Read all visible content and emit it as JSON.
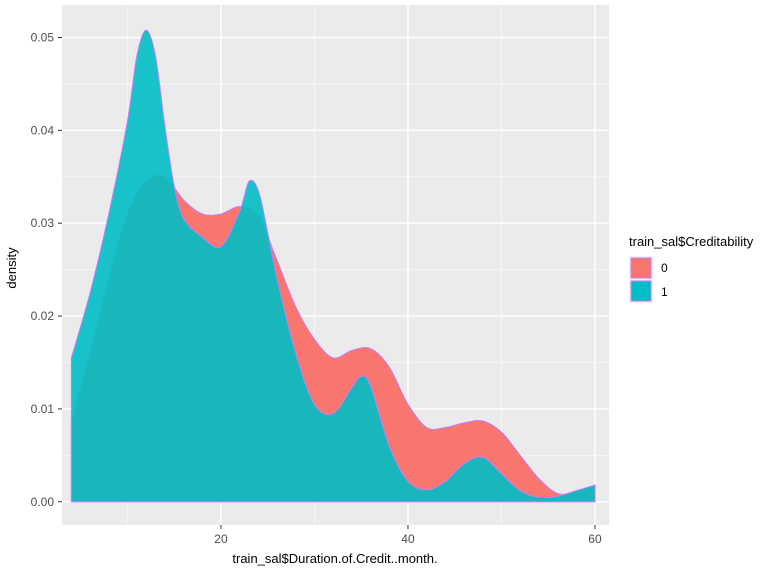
{
  "chart_data": {
    "type": "area",
    "subtype": "density",
    "title": "",
    "xlabel": "train_sal$Duration.of.Credit..month.",
    "ylabel": "density",
    "xlim": [
      3,
      61.5
    ],
    "ylim": [
      -0.0025,
      0.0535
    ],
    "x_ticks": [
      20,
      40,
      60
    ],
    "x_tick_labels": [
      "20",
      "40",
      "60"
    ],
    "y_ticks": [
      0.0,
      0.01,
      0.02,
      0.03,
      0.04,
      0.05
    ],
    "y_tick_labels": [
      "0.00",
      "0.01",
      "0.02",
      "0.03",
      "0.04",
      "0.05"
    ],
    "grid": true,
    "legend": {
      "title": "train_sal$Creditability",
      "position": "right"
    },
    "series": [
      {
        "name": "0",
        "color": "#F8766D",
        "outline": "#C77CFF",
        "x": [
          4,
          6,
          8,
          10,
          12,
          14,
          16,
          18,
          20,
          22,
          24,
          26,
          28,
          30,
          32,
          34,
          36,
          38,
          40,
          42,
          44,
          46,
          48,
          50,
          52,
          54,
          56,
          58,
          60
        ],
        "y": [
          0.0085,
          0.016,
          0.024,
          0.031,
          0.0345,
          0.035,
          0.0325,
          0.031,
          0.031,
          0.0318,
          0.0308,
          0.026,
          0.021,
          0.0175,
          0.0155,
          0.0163,
          0.0165,
          0.0145,
          0.0105,
          0.008,
          0.008,
          0.0085,
          0.0087,
          0.0075,
          0.005,
          0.0025,
          0.0009,
          0.0011,
          0.0018
        ]
      },
      {
        "name": "1",
        "color": "#00BFC4",
        "outline": "#C77CFF",
        "x": [
          4,
          6,
          8,
          10,
          11,
          12,
          13,
          14,
          15,
          16,
          18,
          20,
          22,
          23,
          24,
          25,
          26,
          28,
          30,
          32,
          34,
          35,
          36,
          38,
          40,
          42,
          44,
          46,
          48,
          50,
          52,
          54,
          56,
          58,
          60
        ],
        "y": [
          0.0155,
          0.0225,
          0.031,
          0.041,
          0.048,
          0.0508,
          0.048,
          0.0405,
          0.034,
          0.0305,
          0.0285,
          0.0275,
          0.0313,
          0.0345,
          0.0335,
          0.029,
          0.024,
          0.016,
          0.0105,
          0.0095,
          0.0123,
          0.0135,
          0.0125,
          0.006,
          0.0022,
          0.0013,
          0.0022,
          0.0041,
          0.0048,
          0.003,
          0.0012,
          0.0005,
          0.0006,
          0.0012,
          0.0018
        ]
      }
    ]
  }
}
